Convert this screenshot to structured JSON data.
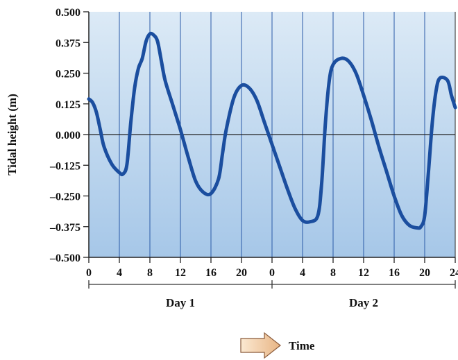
{
  "colors": {
    "plot_top": "#dceaf6",
    "plot_bottom": "#a6c7e8",
    "line": "#1b4e9f",
    "grid": "#2a5aa8",
    "axis": "#222222",
    "arrow_fill_light": "#fbe9d2",
    "arrow_fill_dark": "#e8b585",
    "arrow_stroke": "#8a5a3a"
  },
  "bottom": {
    "day_labels": [
      "Day 1",
      "Day 2"
    ],
    "time_label": "Time",
    "arrow_icon": "right-arrow-icon"
  },
  "chart_data": {
    "type": "line",
    "title": "",
    "xlabel": "",
    "ylabel": "Tidal height (m)",
    "ylim": [
      -0.5,
      0.5
    ],
    "xlim": [
      0,
      48
    ],
    "grid": true,
    "y_ticks": [
      0.5,
      0.375,
      0.25,
      0.125,
      0.0,
      -0.125,
      -0.25,
      -0.375,
      -0.5
    ],
    "y_tick_labels": [
      "0.500",
      "0.375",
      "0.250",
      "0.125",
      "0.000",
      "–0.125",
      "–0.250",
      "–0.375",
      "–0.500"
    ],
    "x_ticks": [
      0,
      4,
      8,
      12,
      16,
      20,
      24,
      28,
      32,
      36,
      40,
      44,
      48
    ],
    "x_tick_labels": [
      "0",
      "4",
      "8",
      "12",
      "16",
      "20",
      "0",
      "4",
      "8",
      "12",
      "16",
      "20",
      "24"
    ],
    "series": [
      {
        "x": [
          0,
          0.5,
          1,
          1.5,
          2,
          3,
          4,
          4.5,
          5,
          5.5,
          6,
          6.5,
          7,
          7.5,
          8,
          8.5,
          9,
          9.5,
          10,
          11,
          12,
          13,
          14,
          15,
          16,
          17,
          17.5,
          18,
          19,
          20,
          21,
          22,
          23,
          24,
          25,
          26,
          27,
          28,
          29,
          30,
          30.5,
          31,
          31.5,
          32,
          33,
          34,
          35,
          36,
          37,
          38,
          39,
          40,
          41,
          42,
          43,
          43.5,
          44,
          44.5,
          45,
          45.5,
          46,
          47,
          47.5,
          48
        ],
        "y": [
          0.145,
          0.13,
          0.09,
          0.02,
          -0.05,
          -0.12,
          -0.155,
          -0.16,
          -0.12,
          0.05,
          0.19,
          0.27,
          0.31,
          0.38,
          0.41,
          0.405,
          0.38,
          0.3,
          0.22,
          0.12,
          0.02,
          -0.09,
          -0.19,
          -0.235,
          -0.24,
          -0.18,
          -0.08,
          0.02,
          0.15,
          0.2,
          0.19,
          0.14,
          0.05,
          -0.04,
          -0.13,
          -0.22,
          -0.3,
          -0.35,
          -0.355,
          -0.33,
          -0.2,
          0.05,
          0.22,
          0.285,
          0.31,
          0.3,
          0.25,
          0.16,
          0.06,
          -0.05,
          -0.15,
          -0.25,
          -0.33,
          -0.37,
          -0.38,
          -0.375,
          -0.33,
          -0.15,
          0.05,
          0.18,
          0.23,
          0.22,
          0.16,
          0.11
        ]
      }
    ]
  }
}
